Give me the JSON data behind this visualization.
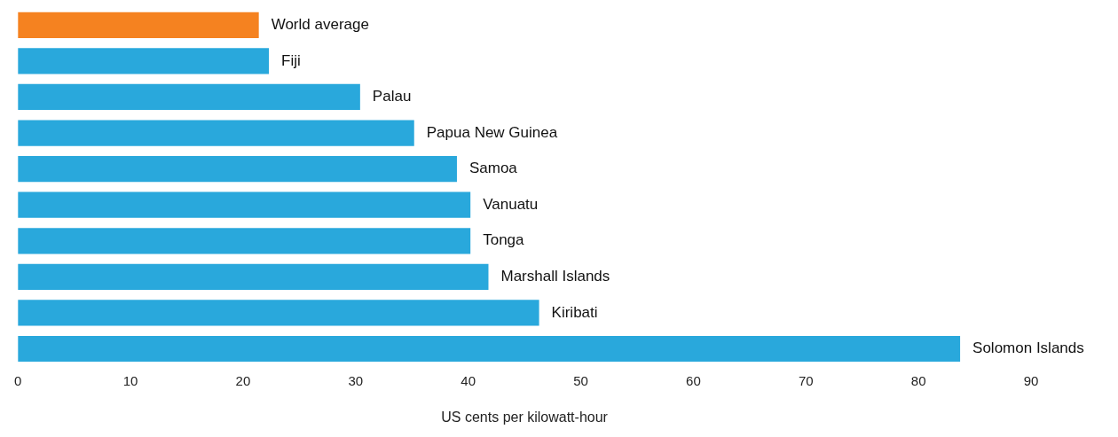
{
  "chart_data": {
    "type": "bar",
    "orientation": "horizontal",
    "xlabel": "US cents per kilowatt-hour",
    "categories": [
      "World average",
      "Fiji",
      "Palau",
      "Papua New Guinea",
      "Samoa",
      "Vanuatu",
      "Tonga",
      "Marshall Islands",
      "Kiribati",
      "Solomon Islands"
    ],
    "values": [
      21.4,
      22.3,
      30.4,
      35.2,
      39.0,
      40.2,
      40.2,
      41.8,
      46.3,
      83.7
    ],
    "colors": [
      "#f58220",
      "#29a8dc",
      "#29a8dc",
      "#29a8dc",
      "#29a8dc",
      "#29a8dc",
      "#29a8dc",
      "#29a8dc",
      "#29a8dc",
      "#29a8dc"
    ],
    "xlim": [
      0,
      90
    ],
    "xticks": [
      0,
      10,
      20,
      30,
      40,
      50,
      60,
      70,
      80,
      90
    ],
    "grid": false,
    "legend": false
  }
}
